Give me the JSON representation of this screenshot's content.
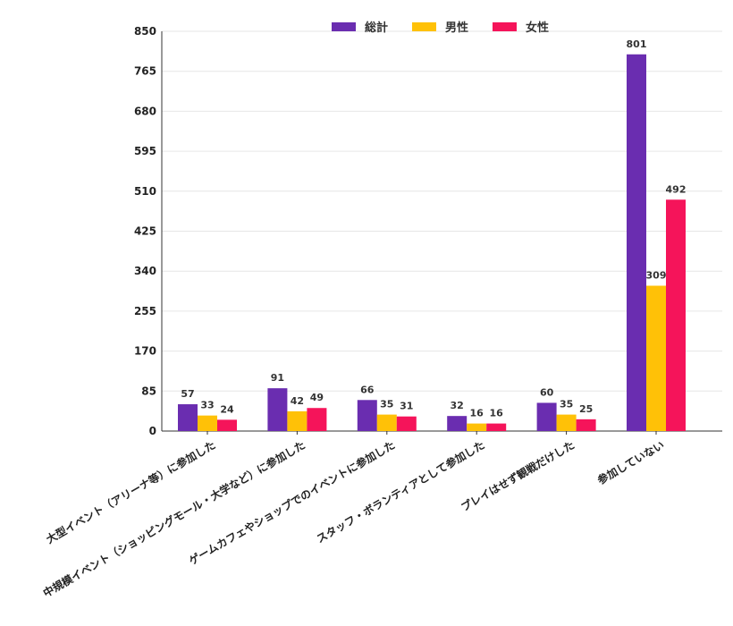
{
  "chart_data": {
    "type": "bar",
    "categories": [
      "大型イベント（アリーナ等）に参加した",
      "中規模イベント（ショッピングモール・大学など）に参加した",
      "ゲームカフェやショップでのイベントに参加した",
      "スタッフ・ボランティアとして参加した",
      "プレイはせず観戦だけした",
      "参加していない"
    ],
    "series": [
      {
        "name": "総計",
        "color": "#6a2db0",
        "values": [
          57,
          91,
          66,
          32,
          60,
          801
        ]
      },
      {
        "name": "男性",
        "color": "#ffc107",
        "values": [
          33,
          42,
          35,
          16,
          35,
          309
        ]
      },
      {
        "name": "女性",
        "color": "#f5145a",
        "values": [
          24,
          49,
          31,
          16,
          25,
          492
        ]
      }
    ],
    "ylim": [
      0,
      850
    ],
    "yticks": [
      0,
      85,
      170,
      255,
      340,
      425,
      510,
      595,
      680,
      765,
      850
    ],
    "grid": true,
    "legend_position": "top-center",
    "data_labels": true
  }
}
